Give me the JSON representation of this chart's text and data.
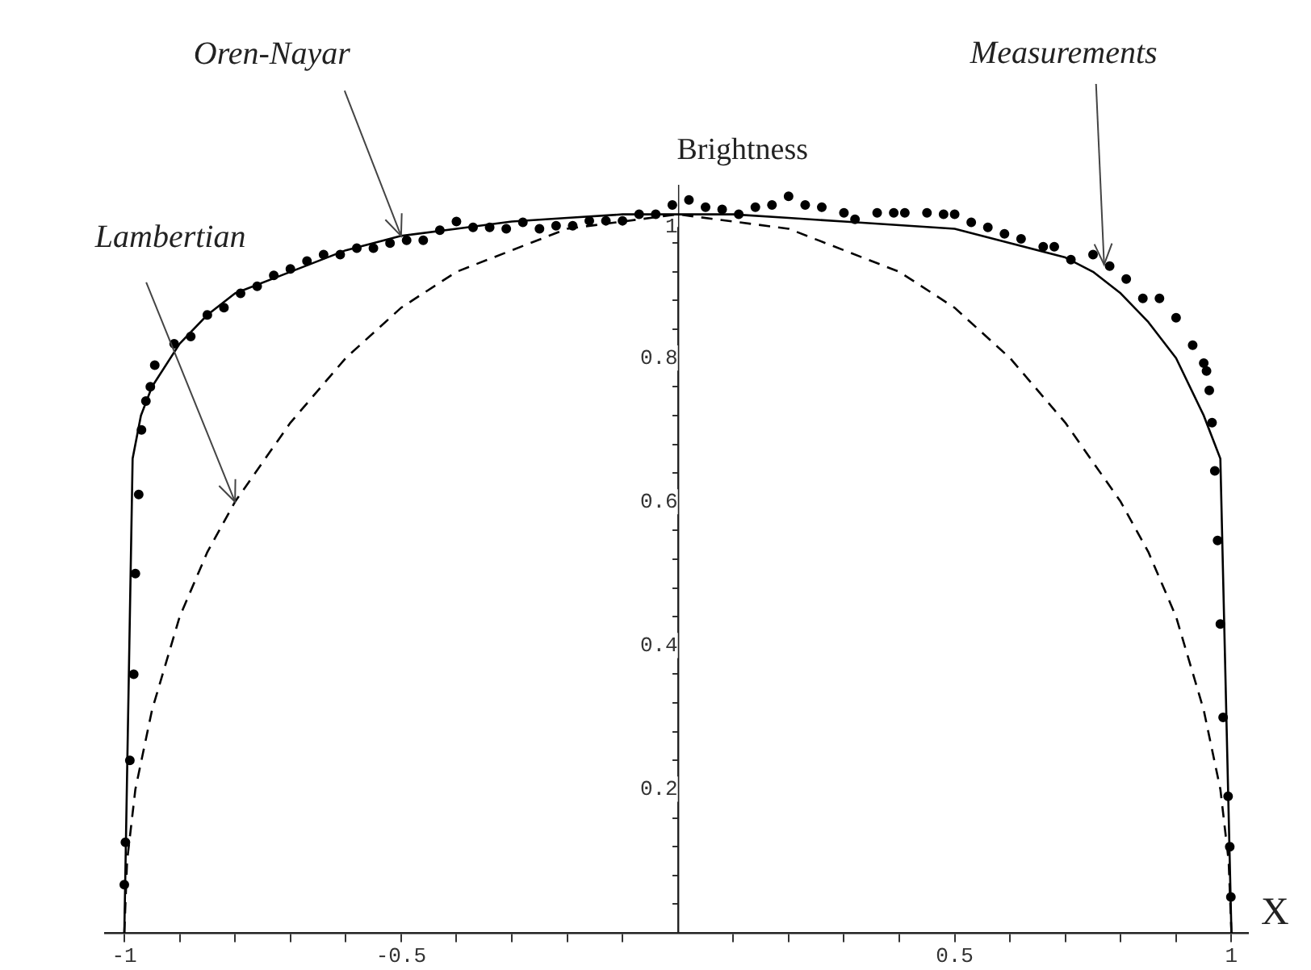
{
  "chart_data": {
    "type": "line",
    "xlabel": "X",
    "ylabel": "Brightness",
    "xlim": [
      -1.035,
      1.03
    ],
    "ylim": [
      0,
      1.04
    ],
    "xticks": [
      -1,
      {
        "value": -0.9,
        "label": null
      },
      {
        "value": -0.8,
        "label": null
      },
      {
        "value": -0.7,
        "label": null
      },
      {
        "value": -0.6,
        "label": null
      },
      -0.5,
      {
        "value": -0.4,
        "label": null
      },
      {
        "value": -0.3,
        "label": null
      },
      {
        "value": -0.2,
        "label": null
      },
      {
        "value": -0.1,
        "label": null
      },
      {
        "value": 0.1,
        "label": null
      },
      {
        "value": 0.2,
        "label": null
      },
      {
        "value": 0.3,
        "label": null
      },
      {
        "value": 0.4,
        "label": null
      },
      0.5,
      {
        "value": 0.6,
        "label": null
      },
      {
        "value": 0.7,
        "label": null
      },
      {
        "value": 0.8,
        "label": null
      },
      {
        "value": 0.9,
        "label": null
      },
      1
    ],
    "yticks": [
      {
        "value": 0.04,
        "label": null
      },
      {
        "value": 0.08,
        "label": null
      },
      {
        "value": 0.12,
        "label": null
      },
      {
        "value": 0.16,
        "label": null
      },
      0.2,
      {
        "value": 0.24,
        "label": null
      },
      {
        "value": 0.28,
        "label": null
      },
      {
        "value": 0.32,
        "label": null
      },
      {
        "value": 0.36,
        "label": null
      },
      0.4,
      {
        "value": 0.44,
        "label": null
      },
      {
        "value": 0.48,
        "label": null
      },
      {
        "value": 0.52,
        "label": null
      },
      {
        "value": 0.56,
        "label": null
      },
      0.6,
      {
        "value": 0.64,
        "label": null
      },
      {
        "value": 0.68,
        "label": null
      },
      {
        "value": 0.72,
        "label": null
      },
      {
        "value": 0.76,
        "label": null
      },
      0.8,
      {
        "value": 0.84,
        "label": null
      },
      {
        "value": 0.88,
        "label": null
      },
      {
        "value": 0.92,
        "label": null
      },
      {
        "value": 0.96,
        "label": null
      },
      1
    ],
    "series": [
      {
        "type": "line",
        "color": "#000000",
        "marker": "none",
        "line_style": "solid",
        "x": [
          -1,
          -0.985,
          -0.97,
          -0.95,
          -0.9,
          -0.85,
          -0.8,
          -0.7,
          -0.6,
          -0.5,
          -0.4,
          -0.3,
          -0.2,
          -0.1,
          0,
          0.1,
          0.2,
          0.3,
          0.4,
          0.5,
          0.6,
          0.7,
          0.75,
          0.8,
          0.85,
          0.9,
          0.95,
          0.97,
          0.98,
          1
        ],
        "values": [
          0,
          0.66,
          0.72,
          0.76,
          0.82,
          0.86,
          0.89,
          0.92,
          0.95,
          0.97,
          0.98,
          0.99,
          0.995,
          1,
          1,
          1,
          0.995,
          0.99,
          0.985,
          0.98,
          0.96,
          0.94,
          0.92,
          0.89,
          0.85,
          0.8,
          0.72,
          0.68,
          0.66,
          0
        ]
      },
      {
        "type": "line",
        "color": "#000000",
        "marker": "none",
        "line_style": "dashed",
        "x": [
          -1,
          -0.995,
          -0.98,
          -0.95,
          -0.9,
          -0.85,
          -0.8,
          -0.7,
          -0.6,
          -0.5,
          -0.4,
          -0.3,
          -0.2,
          -0.1,
          0,
          0.1,
          0.2,
          0.3,
          0.4,
          0.5,
          0.6,
          0.7,
          0.8,
          0.85,
          0.9,
          0.95,
          0.98,
          0.995,
          1
        ],
        "values": [
          0,
          0.1,
          0.2,
          0.31,
          0.44,
          0.53,
          0.6,
          0.71,
          0.8,
          0.87,
          0.92,
          0.95,
          0.98,
          0.99,
          1,
          0.99,
          0.98,
          0.95,
          0.92,
          0.87,
          0.8,
          0.71,
          0.6,
          0.53,
          0.44,
          0.31,
          0.2,
          0.1,
          0
        ]
      },
      {
        "type": "scatter",
        "color": "#000000",
        "marker": "circle",
        "x": [
          -1,
          -0.998,
          -0.99,
          -0.983,
          -0.98,
          -0.974,
          -0.969,
          -0.961,
          -0.953,
          -0.945,
          -0.91,
          -0.88,
          -0.85,
          -0.82,
          -0.79,
          -0.76,
          -0.73,
          -0.7,
          -0.67,
          -0.64,
          -0.61,
          -0.58,
          -0.55,
          -0.52,
          -0.49,
          -0.46,
          -0.43,
          -0.4,
          -0.37,
          -0.34,
          -0.31,
          -0.28,
          -0.25,
          -0.22,
          -0.19,
          -0.16,
          -0.13,
          -0.1,
          -0.07,
          -0.04,
          -0.01,
          0.02,
          0.05,
          0.08,
          0.11,
          0.14,
          0.17,
          0.2,
          0.23,
          0.26,
          0.3,
          0.32,
          0.36,
          0.39,
          0.41,
          0.45,
          0.48,
          0.5,
          0.53,
          0.56,
          0.59,
          0.62,
          0.66,
          0.68,
          0.71,
          0.75,
          0.78,
          0.81,
          0.84,
          0.87,
          0.9,
          0.93,
          0.95,
          0.955,
          0.96,
          0.965,
          0.97,
          0.975,
          0.98,
          0.985,
          0.994,
          0.997,
          0.999
        ],
        "values": [
          0.067,
          0.126,
          0.24,
          0.36,
          0.5,
          0.61,
          0.7,
          0.74,
          0.76,
          0.79,
          0.82,
          0.83,
          0.86,
          0.87,
          0.89,
          0.9,
          0.915,
          0.924,
          0.935,
          0.944,
          0.944,
          0.953,
          0.953,
          0.96,
          0.964,
          0.964,
          0.978,
          0.99,
          0.982,
          0.982,
          0.98,
          0.989,
          0.98,
          0.984,
          0.984,
          0.991,
          0.991,
          0.991,
          1,
          1,
          1.013,
          1.02,
          1.01,
          1.007,
          1,
          1.01,
          1.013,
          1.025,
          1.013,
          1.01,
          1.002,
          0.993,
          1.002,
          1.002,
          1.002,
          1.002,
          1,
          1,
          0.989,
          0.982,
          0.973,
          0.966,
          0.955,
          0.955,
          0.937,
          0.944,
          0.928,
          0.91,
          0.883,
          0.883,
          0.856,
          0.818,
          0.793,
          0.782,
          0.755,
          0.71,
          0.643,
          0.546,
          0.43,
          0.3,
          0.19,
          0.12,
          0.05
        ]
      }
    ],
    "annotations": [
      {
        "text": "Oren-Nayar",
        "x": -0.5,
        "y": 0.97
      },
      {
        "text": "Lambertian",
        "x": -0.8,
        "y": 0.6
      },
      {
        "text": "Measurements",
        "x": 0.77,
        "y": 0.93
      }
    ]
  }
}
